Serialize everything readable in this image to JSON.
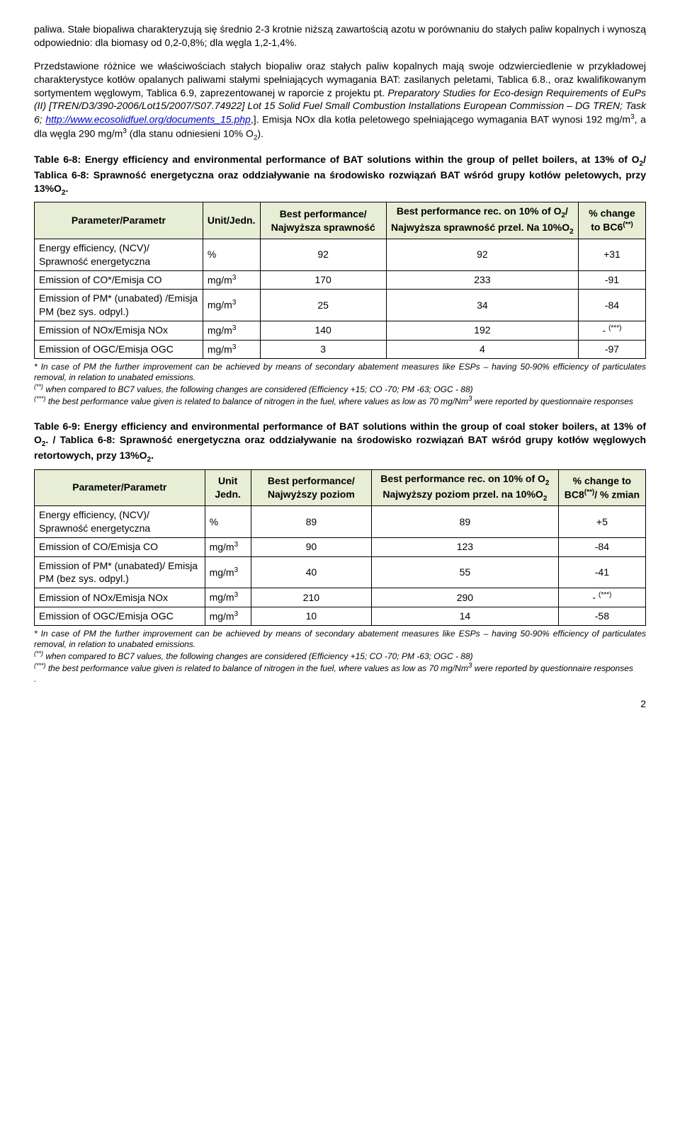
{
  "para1": "paliwa. Stałe biopaliwa charakteryzują się średnio 2-3 krotnie niższą zawartością azotu w porównaniu do stałych paliw kopalnych i wynoszą odpowiednio: dla biomasy od 0,2-0,8%; dla węgla 1,2-1,4%.",
  "para2_pre": "Przedstawione różnice we właściwościach stałych biopaliw oraz stałych paliw kopalnych mają swoje odzwierciedlenie w przykładowej charakterystyce kotłów opalanych paliwami stałymi spełniających wymagania BAT: zasilanych peletami, Tablica 6.8., oraz kwalifikowanym sortymentem węglowym, Tablica 6.9, zaprezentowanej w raporcie z projektu pt. ",
  "para2_italic1": "Preparatory Studies for Eco-design Requirements of EuPs (II) [TREN/D3/390-2006/Lot15/2007/S07.74922] Lot 15 Solid Fuel Small Combustion Installations European Commission – DG TREN; Task 6; ",
  "para2_link": "http://www.ecosolidfuel.org/documents_15.php",
  "para2_post": ",]. Emisja NOx dla kotła peletowego spełniającego wymagania BAT wynosi 192 mg/m",
  "para2_tail": ", a dla węgla 290 mg/m",
  "para2_end": " (dla stanu odniesieni 10% O",
  "para2_close": ").",
  "table68_title": "Table 6-8: Energy efficiency and environmental performance of BAT solutions within the group of pellet boilers, at 13% of O2/ Tablica 6-8: Sprawność energetyczna oraz oddziaływanie na środowisko rozwiązań BAT wśród grupy kotłów peletowych, przy 13%O2.",
  "table69_title": "Table 6-9: Energy efficiency and environmental performance of BAT solutions within the group of coal stoker boilers, at 13% of O2. / Tablica 6-8: Sprawność energetyczna oraz oddziaływanie na środowisko rozwiązań BAT wśród grupy kotłów węglowych retortowych, przy 13%O2.",
  "t68": {
    "headers": {
      "param": "Parameter/Parametr",
      "unit": "Unit/Jedn.",
      "best": "Best performance/ Najwyższa sprawność",
      "best10": "Best performance rec. on 10% of O2/ Najwyższa sprawność przel. Na 10%O2",
      "change": "% change to BC6(**)"
    },
    "rows": [
      {
        "p": "Energy efficiency, (NCV)/ Sprawność energetyczna",
        "u": "%",
        "b": "92",
        "b10": "92",
        "c": "+31"
      },
      {
        "p": "Emission of CO*/Emisja CO",
        "u": "mg/m3",
        "b": "170",
        "b10": "233",
        "c": "-91"
      },
      {
        "p": "Emission of PM* (unabated) /Emisja PM (bez sys. odpyl.)",
        "u": "mg/m3",
        "b": "25",
        "b10": "34",
        "c": "-84"
      },
      {
        "p": "Emission of NOx/Emisja NOx",
        "u": "mg/m3",
        "b": "140",
        "b10": "192",
        "c": "- (***)"
      },
      {
        "p": "Emission of OGC/Emisja OGC",
        "u": "mg/m3",
        "b": "3",
        "b10": "4",
        "c": "-97"
      }
    ]
  },
  "t69": {
    "headers": {
      "param": "Parameter/Parametr",
      "unit": "Unit Jedn.",
      "best": "Best performance/ Najwyższy poziom",
      "best10": "Best performance rec. on 10% of O2 Najwyższy poziom przel. na 10%O2",
      "change": "% change to BC8(**)/ % zmian"
    },
    "rows": [
      {
        "p": "Energy efficiency, (NCV)/ Sprawność energetyczna",
        "u": "%",
        "b": "89",
        "b10": "89",
        "c": "+5"
      },
      {
        "p": "Emission of CO/Emisja CO",
        "u": "mg/m3",
        "b": "90",
        "b10": "123",
        "c": "-84"
      },
      {
        "p": "Emission of PM* (unabated)/ Emisja PM (bez sys. odpyl.)",
        "u": "mg/m3",
        "b": "40",
        "b10": "55",
        "c": "-41"
      },
      {
        "p": "Emission of NOx/Emisja NOx",
        "u": "mg/m3",
        "b": "210",
        "b10": "290",
        "c": "- (***)"
      },
      {
        "p": "Emission of OGC/Emisja OGC",
        "u": "mg/m3",
        "b": "10",
        "b10": "14",
        "c": "-58"
      }
    ]
  },
  "foot_a": "* In case of PM the further improvement can be achieved by means of secondary abatement measures like ESPs – having 50-90% efficiency of particulates removal, in relation to unabated emissions.",
  "foot_b": " when compared to BC7 values, the following changes are considered (Efficiency +15; CO -70; PM -63; OGC - 88)",
  "foot_c": " the best performance value given is related to balance of nitrogen in the fuel, where values as low as 70 mg/Nm3 were reported by questionnaire responses",
  "foot_b2": " when compared to BC7 values, the following changes are considered (Efficiency +15; CO -70; PM -63; OGC - 88)",
  "foot_dot": ".",
  "pagenum": "2",
  "colors": {
    "th_bg": "#e8eed6",
    "link": "#0000cc"
  }
}
